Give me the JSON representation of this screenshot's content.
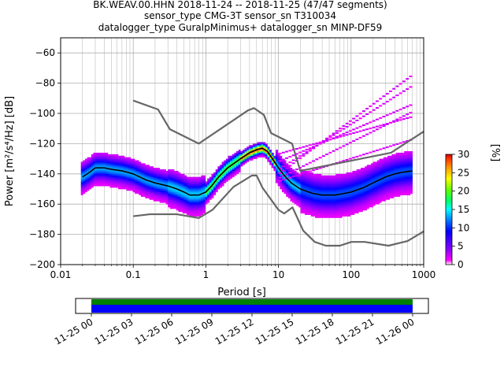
{
  "header": {
    "title_lines": [
      "BK.WEAV.00.HHN   2018-11-24 -- 2018-11-25  (47/47 segments)",
      "sensor_type CMG-3T sensor_sn T310034",
      "datalogger_type GuralpMinimus+ datalogger_sn MINP-DF59"
    ]
  },
  "chart_data": [
    {
      "type": "heatmap",
      "subtype": "probabilistic-power-spectral-density",
      "title": "BK.WEAV.00.HHN   2018-11-24 -- 2018-11-25  (47/47 segments)",
      "xlabel": "Period [s]",
      "ylabel": "Power [m²/s⁴/Hz] [dB]",
      "xscale": "log",
      "xlim": [
        0.01,
        1000
      ],
      "ylim": [
        -200,
        -50
      ],
      "xticks": [
        "0.01",
        "0.1",
        "1",
        "10",
        "100",
        "1000"
      ],
      "yticks": [
        "−60",
        "−80",
        "−100",
        "−120",
        "−140",
        "−160",
        "−180",
        "−200"
      ],
      "grid": true,
      "colorbar": {
        "label": "[%]",
        "range": [
          0,
          30
        ],
        "ticks": [
          "0",
          "5",
          "10",
          "15",
          "20",
          "25",
          "30"
        ],
        "colormap": [
          "#ffffff",
          "#ff00ff",
          "#8800ff",
          "#0000ff",
          "#0077ff",
          "#00ffff",
          "#00ff66",
          "#66ff00",
          "#ffff00",
          "#ff9900",
          "#ff3300",
          "#cc0000"
        ]
      },
      "series": [
        {
          "role": "mode",
          "color": "#000000",
          "x": [
            0.02,
            0.025,
            0.03,
            0.04,
            0.05,
            0.07,
            0.1,
            0.15,
            0.2,
            0.3,
            0.4,
            0.5,
            0.6,
            0.7,
            0.8,
            1,
            1.2,
            1.5,
            2,
            3,
            4,
            5,
            6,
            7,
            8,
            10,
            12,
            15,
            20,
            30,
            40,
            50,
            60,
            80,
            100,
            150,
            200,
            300,
            400,
            500,
            700
          ],
          "y": [
            -142,
            -139,
            -136,
            -136,
            -137,
            -138,
            -140,
            -144,
            -146,
            -148,
            -150,
            -152,
            -154,
            -154,
            -154,
            -152,
            -148,
            -142,
            -136,
            -130,
            -126,
            -124,
            -123,
            -125,
            -129,
            -136,
            -141,
            -146,
            -150,
            -153,
            -154,
            -154,
            -154,
            -153,
            -152,
            -149,
            -146,
            -142,
            -140,
            -139,
            -138
          ]
        },
        {
          "role": "new-high-noise-model",
          "color": "#666666",
          "x": [
            0.1,
            0.22,
            0.32,
            0.8,
            3.8,
            4.6,
            6.3,
            7.9,
            15.4,
            20,
            354.8,
            1000
          ],
          "y": [
            -91.5,
            -97.4,
            -110.5,
            -120,
            -98,
            -96.5,
            -101,
            -113,
            -120,
            -138,
            -126,
            -112
          ]
        },
        {
          "role": "new-low-noise-model",
          "color": "#666666",
          "x": [
            0.1,
            0.17,
            0.4,
            0.8,
            1.24,
            2.4,
            4.3,
            5.0,
            6.0,
            10.0,
            12.0,
            15.6,
            21.9,
            31.6,
            45,
            70,
            101,
            154,
            328,
            600,
            1000
          ],
          "y": [
            -168,
            -166.7,
            -166.7,
            -169.2,
            -163.7,
            -148.6,
            -141.1,
            -141.1,
            -149,
            -163.8,
            -166.2,
            -162.1,
            -177.5,
            -185,
            -187.5,
            -187.5,
            -185,
            -185,
            -187.5,
            -184.4,
            -178
          ]
        }
      ]
    },
    {
      "type": "timeline",
      "x_tick_labels": [
        "11-25 00",
        "11-25 03",
        "11-25 06",
        "11-25 09",
        "11-25 12",
        "11-25 15",
        "11-25 18",
        "11-25 21",
        "11-26 00"
      ],
      "coverage": [
        {
          "from_hour": 0,
          "to_hour": 24,
          "color": "#008000"
        },
        {
          "from_hour": 0,
          "to_hour": 24,
          "color": "#0000ff"
        }
      ]
    }
  ]
}
